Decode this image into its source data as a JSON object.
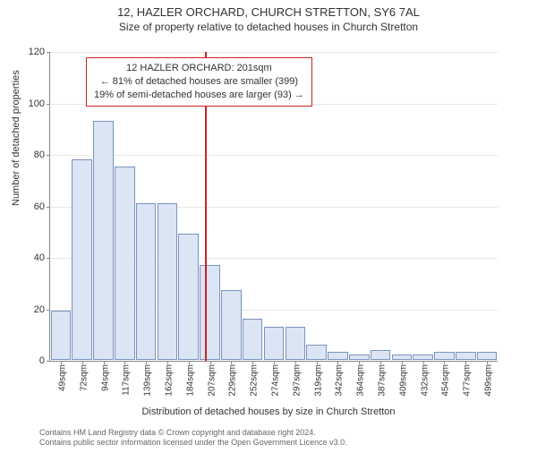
{
  "title_main": "12, HAZLER ORCHARD, CHURCH STRETTON, SY6 7AL",
  "title_sub": "Size of property relative to detached houses in Church Stretton",
  "y_axis_label": "Number of detached properties",
  "x_axis_label": "Distribution of detached houses by size in Church Stretton",
  "ylim": [
    0,
    120
  ],
  "ytick_step": 20,
  "bar_fill": "#dbe5f4",
  "bar_stroke": "#7a93bd",
  "grid_color": "#e8e8e8",
  "axis_color": "#888888",
  "ref_line_color": "#cc2222",
  "background_color": "#ffffff",
  "label_fontsize": 11,
  "tick_fontsize": 10,
  "title_fontsize": 13,
  "reference_value_sqm": 201,
  "annotation": {
    "line1": "12 HAZLER ORCHARD: 201sqm",
    "line2": "← 81% of detached houses are smaller (399)",
    "line3": "19% of semi-detached houses are larger (93) →"
  },
  "categories": [
    "49sqm",
    "72sqm",
    "94sqm",
    "117sqm",
    "139sqm",
    "162sqm",
    "184sqm",
    "207sqm",
    "229sqm",
    "252sqm",
    "274sqm",
    "297sqm",
    "319sqm",
    "342sqm",
    "364sqm",
    "387sqm",
    "409sqm",
    "432sqm",
    "454sqm",
    "477sqm",
    "499sqm"
  ],
  "values": [
    19,
    78,
    93,
    75,
    61,
    61,
    49,
    37,
    27,
    16,
    13,
    13,
    6,
    3,
    2,
    4,
    2,
    2,
    3,
    3,
    3
  ],
  "footer_line1": "Contains HM Land Registry data © Crown copyright and database right 2024.",
  "footer_line2": "Contains public sector information licensed under the Open Government Licence v3.0."
}
